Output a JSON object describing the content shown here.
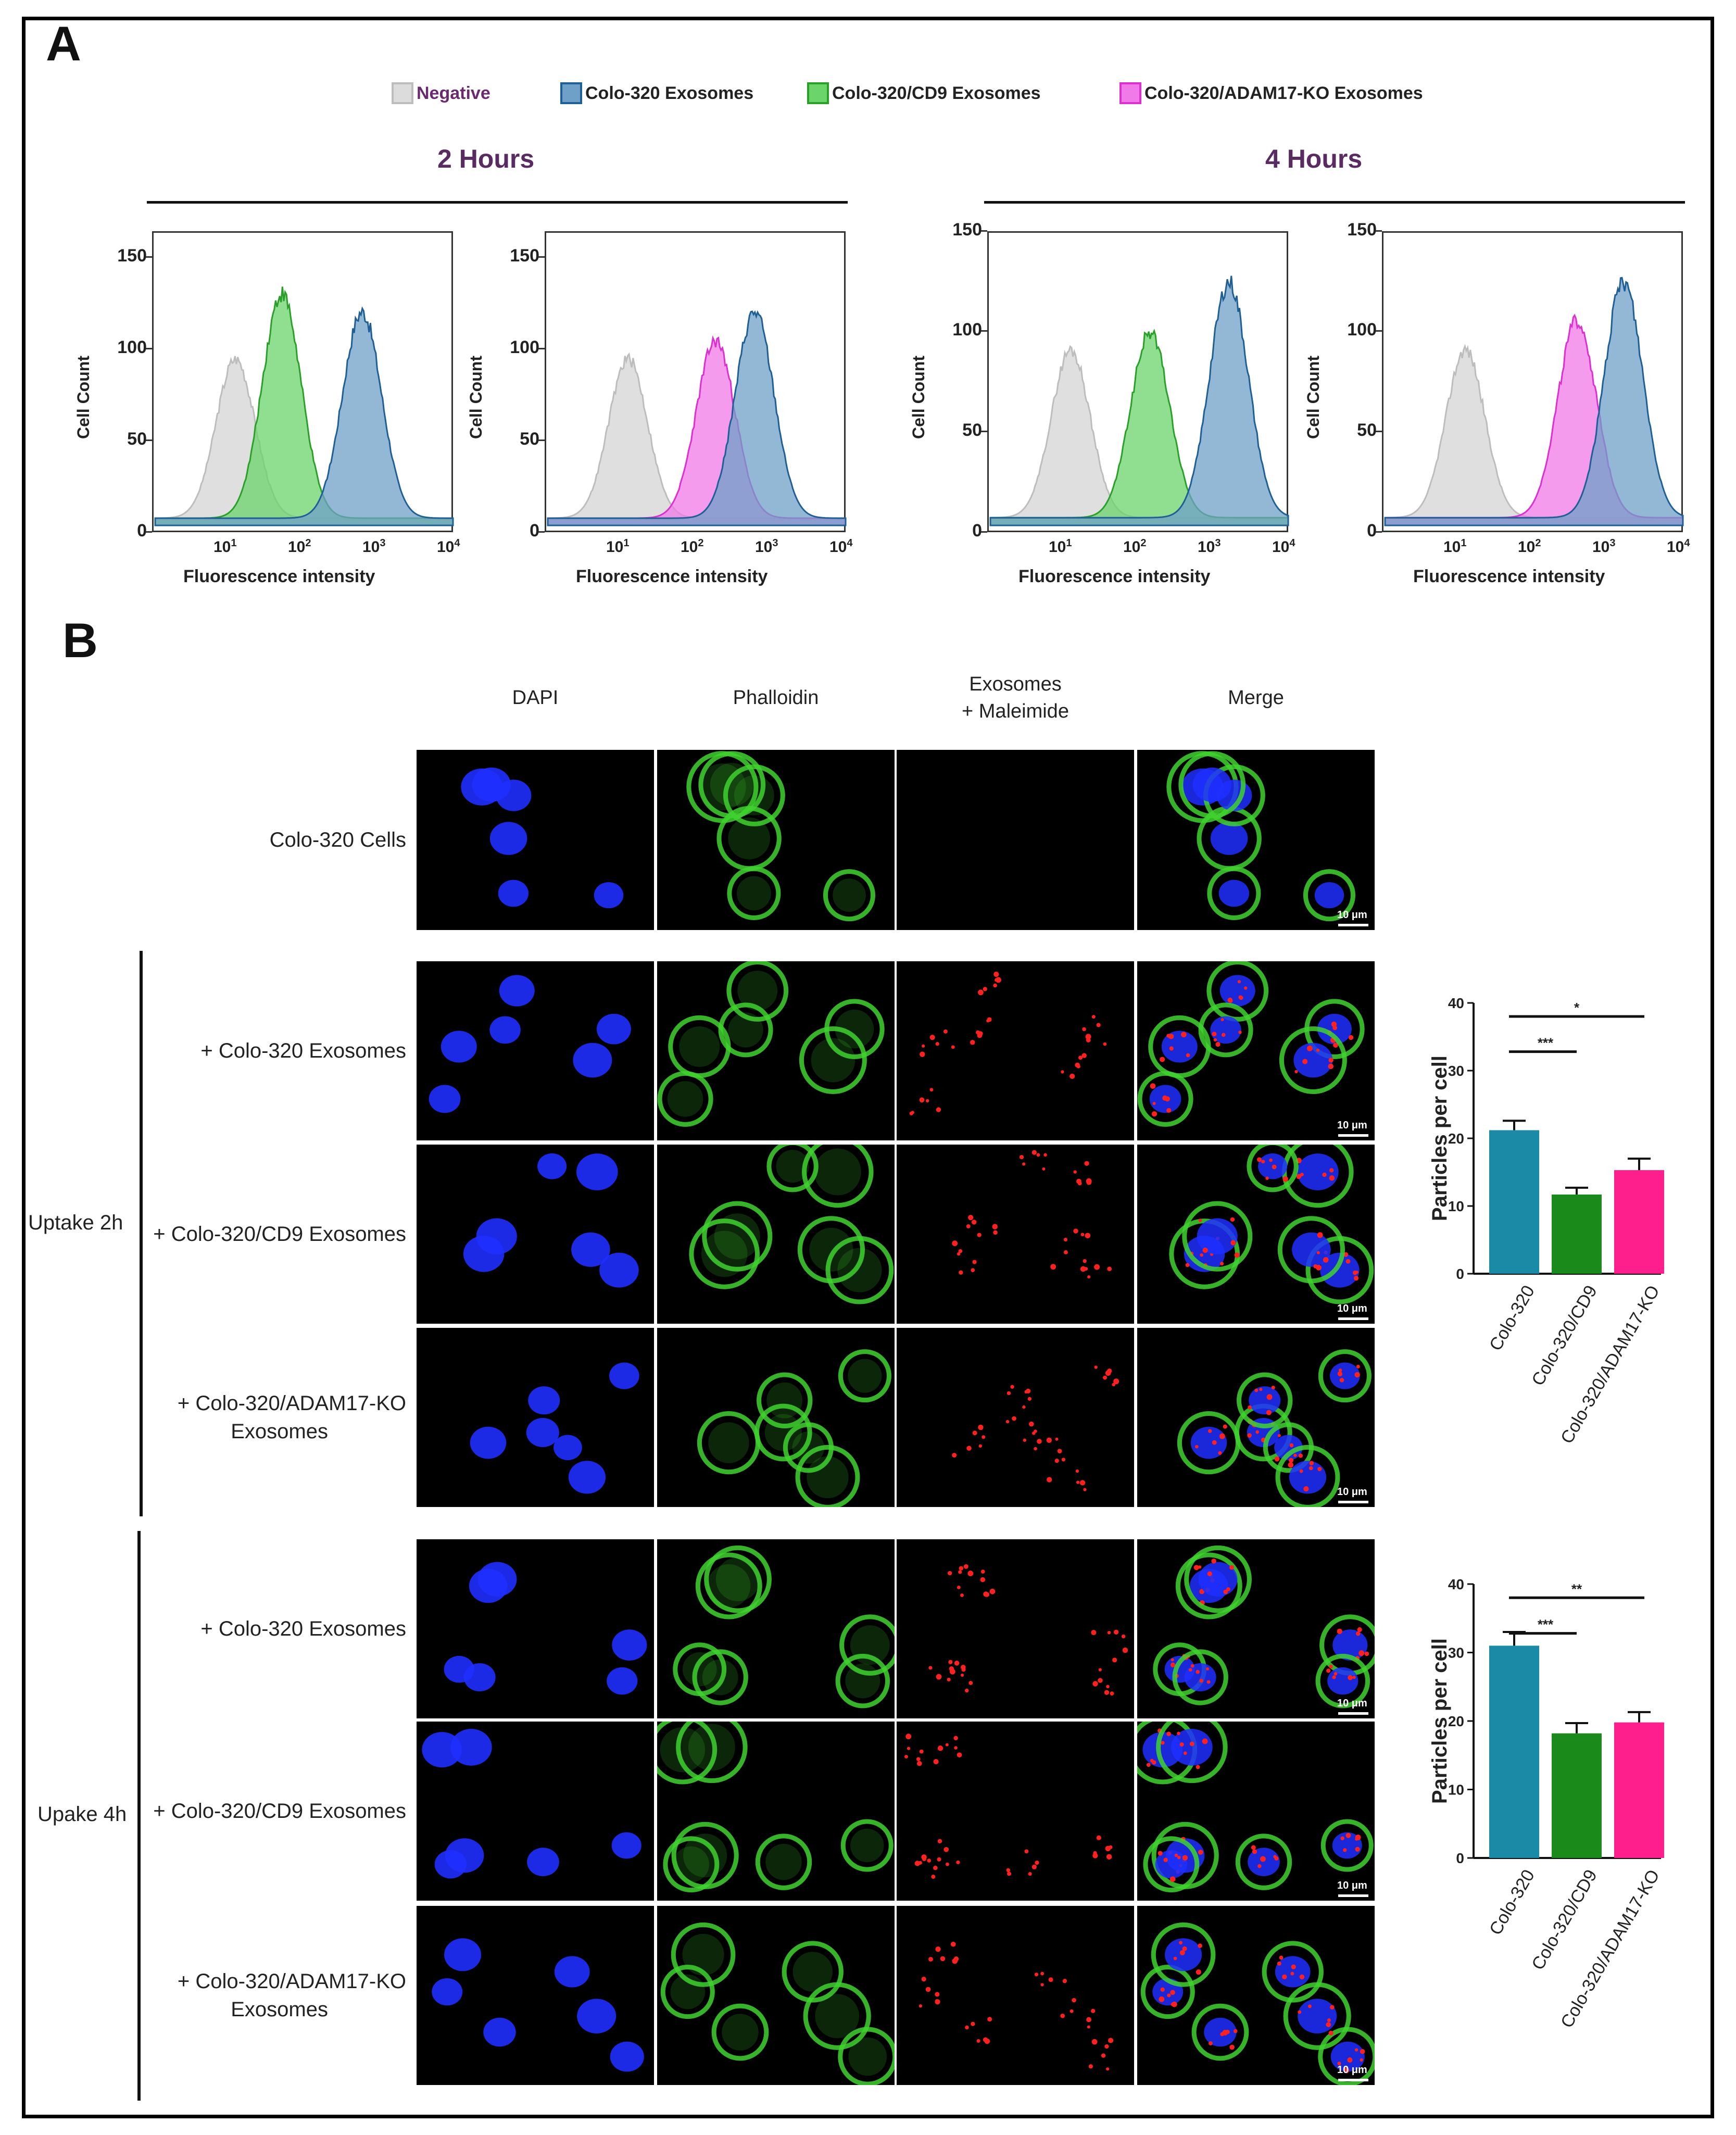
{
  "panelA": {
    "letter": "A",
    "legend": [
      {
        "label": "Negative",
        "fill": "#dcdcdc",
        "stroke": "#bdbdbd",
        "text_color": "#6a2a6e"
      },
      {
        "label": "Colo-320 Exosomes",
        "fill": "#6fa0c8",
        "stroke": "#1f5f95",
        "text_color": "#222222"
      },
      {
        "label": "Colo-320/CD9 Exosomes",
        "fill": "#6bd46b",
        "stroke": "#2aa02a",
        "text_color": "#222222"
      },
      {
        "label": "Colo-320/ADAM17-KO Exosomes",
        "fill": "#f07ae8",
        "stroke": "#dd30d0",
        "text_color": "#222222"
      }
    ],
    "groups": [
      {
        "title": "2 Hours"
      },
      {
        "title": "4 Hours"
      }
    ],
    "ylabel": "Cell Count",
    "xlabel": "Fluorescence intensity",
    "yticks": [
      "0",
      "50",
      "100",
      "150"
    ],
    "xticks": [
      "1",
      "2",
      "3",
      "4"
    ],
    "x_tick_base": "10"
  },
  "chart_data": [
    {
      "type": "area",
      "group": "2 Hours",
      "xscale": "log",
      "xlim": [
        1,
        10000
      ],
      "ylim": [
        0,
        160
      ],
      "ylabel": "Cell Count",
      "xlabel": "Fluorescence intensity",
      "series": [
        {
          "name": "Negative",
          "peak_x": 12,
          "peak_y": 88
        },
        {
          "name": "Colo-320/CD9 Exosomes",
          "peak_x": 50,
          "peak_y": 124
        },
        {
          "name": "Colo-320 Exosomes",
          "peak_x": 600,
          "peak_y": 114
        }
      ]
    },
    {
      "type": "area",
      "group": "2 Hours",
      "xscale": "log",
      "xlim": [
        1,
        10000
      ],
      "ylim": [
        0,
        160
      ],
      "ylabel": "Cell Count",
      "xlabel": "Fluorescence intensity",
      "series": [
        {
          "name": "Negative",
          "peak_x": 12,
          "peak_y": 88
        },
        {
          "name": "Colo-320/ADAM17-KO Exosomes",
          "peak_x": 180,
          "peak_y": 98
        },
        {
          "name": "Colo-320 Exosomes",
          "peak_x": 600,
          "peak_y": 114
        }
      ]
    },
    {
      "type": "area",
      "group": "4 Hours",
      "xscale": "log",
      "xlim": [
        1,
        10000
      ],
      "ylim": [
        0,
        150
      ],
      "ylabel": "Cell Count",
      "xlabel": "Fluorescence intensity",
      "series": [
        {
          "name": "Negative",
          "peak_x": 12,
          "peak_y": 87
        },
        {
          "name": "Colo-320/CD9 Exosomes",
          "peak_x": 140,
          "peak_y": 96
        },
        {
          "name": "Colo-320 Exosomes",
          "peak_x": 1600,
          "peak_y": 122
        }
      ]
    },
    {
      "type": "area",
      "group": "4 Hours",
      "xscale": "log",
      "xlim": [
        1,
        10000
      ],
      "ylim": [
        0,
        150
      ],
      "ylabel": "Cell Count",
      "xlabel": "Fluorescence intensity",
      "series": [
        {
          "name": "Negative",
          "peak_x": 12,
          "peak_y": 87
        },
        {
          "name": "Colo-320/ADAM17-KO Exosomes",
          "peak_x": 380,
          "peak_y": 102
        },
        {
          "name": "Colo-320 Exosomes",
          "peak_x": 1600,
          "peak_y": 122
        }
      ]
    },
    {
      "type": "bar",
      "group": "Uptake 2h",
      "categories": [
        "Colo-320",
        "Colo-320/CD9",
        "Colo-320/ADAM17-KO"
      ],
      "values": [
        21.2,
        11.7,
        15.3
      ],
      "errors": [
        1.4,
        1.0,
        1.7
      ],
      "ylabel": "Particles per cell",
      "ylim": [
        0,
        40
      ],
      "yticks": [
        "0",
        "10",
        "20",
        "30",
        "40"
      ],
      "colors": [
        "#1b8aa6",
        "#1a8a1a",
        "#ff1f8c"
      ],
      "significance": [
        {
          "from": 0,
          "to": 1,
          "label": "***"
        },
        {
          "from": 0,
          "to": 2,
          "label": "*"
        }
      ]
    },
    {
      "type": "bar",
      "group": "Upake 4h",
      "categories": [
        "Colo-320",
        "Colo-320/CD9",
        "Colo-320/ADAM17-KO"
      ],
      "values": [
        31.0,
        18.2,
        19.8
      ],
      "errors": [
        2.0,
        1.5,
        1.5
      ],
      "ylabel": "Particles per cell",
      "ylim": [
        0,
        40
      ],
      "yticks": [
        "0",
        "10",
        "20",
        "30",
        "40"
      ],
      "colors": [
        "#1b8aa6",
        "#1a8a1a",
        "#ff1f8c"
      ],
      "significance": [
        {
          "from": 0,
          "to": 1,
          "label": "***"
        },
        {
          "from": 0,
          "to": 2,
          "label": "**"
        }
      ]
    }
  ],
  "panelB": {
    "letter": "B",
    "columns": [
      "DAPI",
      "Phalloidin",
      "Exosomes\n+ Maleimide",
      "Merge"
    ],
    "column_line1": [
      "DAPI",
      "Phalloidin",
      "Exosomes",
      "Merge"
    ],
    "column_line2": [
      "",
      "",
      "+ Maleimide",
      ""
    ],
    "rows": [
      {
        "line1": "Colo-320 Cells",
        "line2": ""
      },
      {
        "line1": "+ Colo-320 Exosomes",
        "line2": ""
      },
      {
        "line1": "+ Colo-320/CD9 Exosomes",
        "line2": ""
      },
      {
        "line1": "+ Colo-320/ADAM17-KO",
        "line2": "Exosomes"
      },
      {
        "line1": "+ Colo-320 Exosomes",
        "line2": ""
      },
      {
        "line1": "+ Colo-320/CD9 Exosomes",
        "line2": ""
      },
      {
        "line1": "+ Colo-320/ADAM17-KO",
        "line2": "Exosomes"
      }
    ],
    "groups": [
      "Uptake 2h",
      "Upake 4h"
    ],
    "scale_label": "10 μm",
    "channel_colors": {
      "dapi": "#1f2fff",
      "phalloidin": "#3fd22f",
      "exosome": "#ff2020"
    }
  }
}
